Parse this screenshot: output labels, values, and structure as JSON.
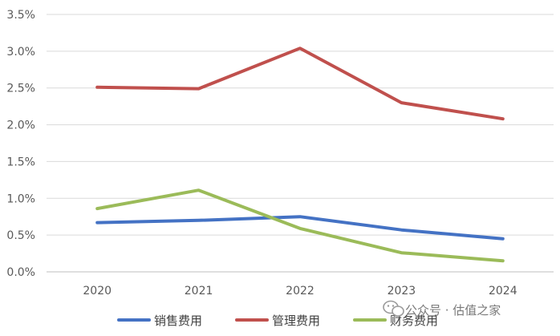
{
  "chart_data": {
    "type": "line",
    "title": "",
    "xlabel": "",
    "ylabel": "",
    "categories": [
      "2020",
      "2021",
      "2022",
      "2023",
      "2024"
    ],
    "ylim": [
      0,
      3.5
    ],
    "y_ticks": [
      "0.0%",
      "0.5%",
      "1.0%",
      "1.5%",
      "2.0%",
      "2.5%",
      "3.0%",
      "3.5%"
    ],
    "grid": true,
    "legend_position": "bottom",
    "series": [
      {
        "name": "销售费用",
        "color": "#4472c4",
        "values": [
          0.67,
          0.7,
          0.75,
          0.57,
          0.45
        ]
      },
      {
        "name": "管理费用",
        "color": "#c0504d",
        "values": [
          2.51,
          2.49,
          3.04,
          2.3,
          2.08
        ]
      },
      {
        "name": "财务费用",
        "color": "#9bbb59",
        "values": [
          0.86,
          1.11,
          0.59,
          0.26,
          0.15
        ]
      }
    ]
  },
  "watermark": {
    "text": "公众号 · 估值之家",
    "icon": "wechat-icon"
  }
}
